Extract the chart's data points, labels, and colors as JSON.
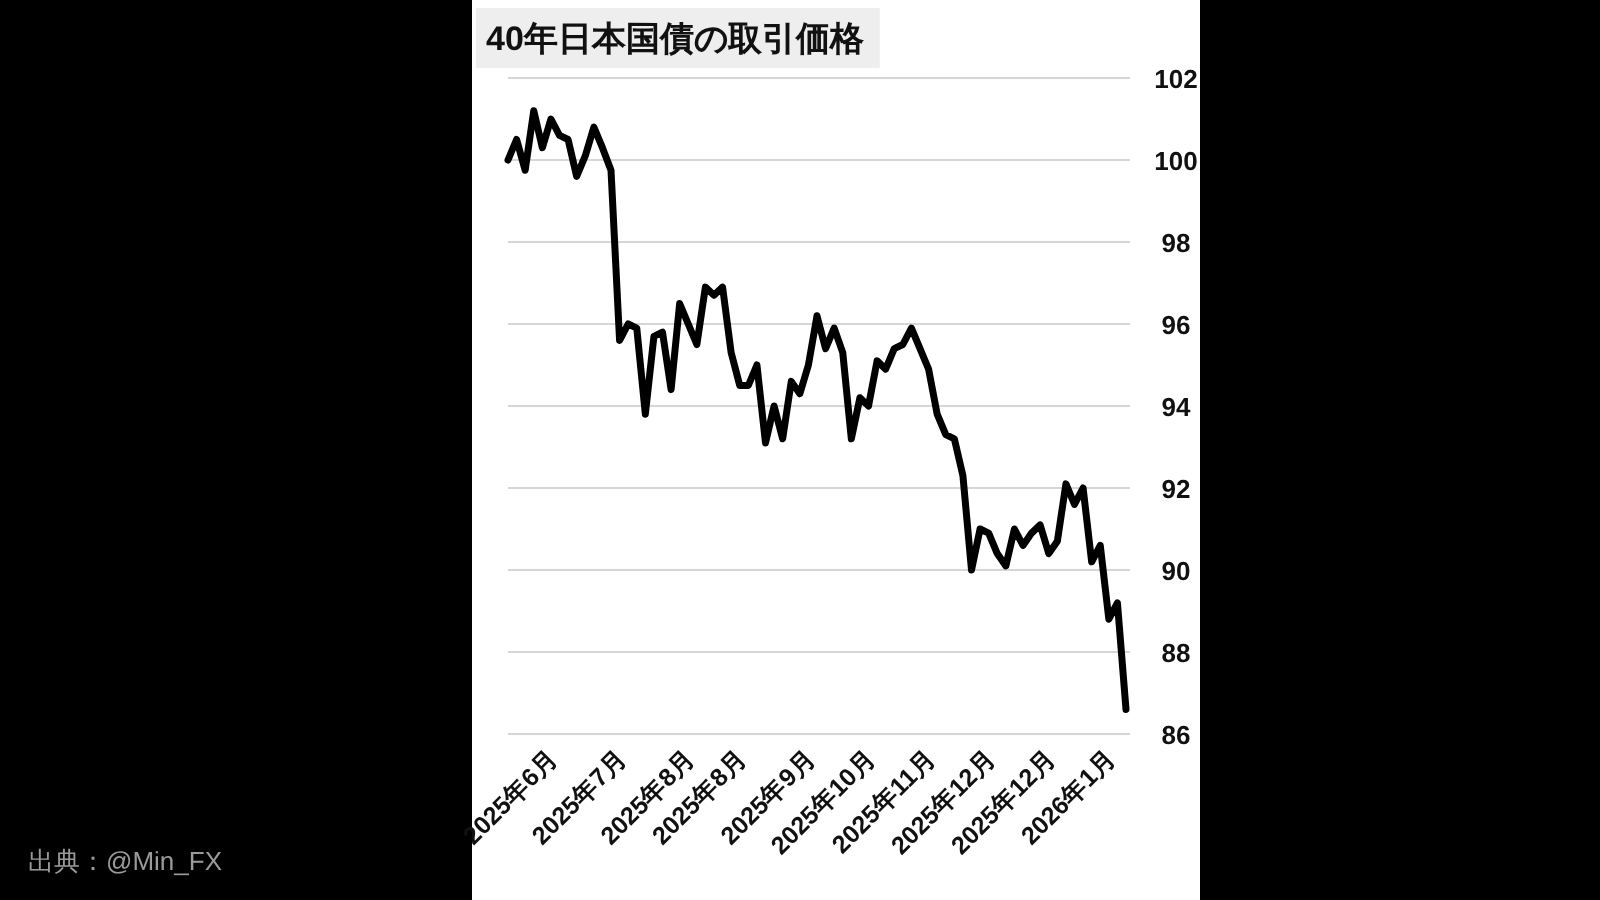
{
  "chart_data": {
    "type": "line",
    "title": "40年日本国債の取引価格",
    "annotations": [
      "出典：@Min_FX"
    ],
    "categories": [
      null,
      null,
      null,
      null,
      null,
      null,
      "2025年6月",
      null,
      null,
      null,
      null,
      null,
      null,
      null,
      "2025年7月",
      null,
      null,
      null,
      null,
      null,
      null,
      null,
      "2025年8月",
      null,
      null,
      null,
      null,
      null,
      "2025年8月",
      null,
      null,
      null,
      null,
      null,
      null,
      null,
      "2025年9月",
      null,
      null,
      null,
      null,
      null,
      null,
      "2025年10月",
      null,
      null,
      null,
      null,
      null,
      null,
      "2025年11月",
      null,
      null,
      null,
      null,
      null,
      null,
      "2025年12月",
      null,
      null,
      null,
      null,
      null,
      null,
      "2025年12月",
      null,
      null,
      null,
      null,
      null,
      null,
      "2026年1月",
      null
    ],
    "series": [
      {
        "color": "#000000",
        "values": [
          100.0,
          100.5,
          99.75,
          101.2,
          100.3,
          101.0,
          100.6,
          100.5,
          99.6,
          100.1,
          100.8,
          100.3,
          99.75,
          95.6,
          96.0,
          95.9,
          93.8,
          95.7,
          95.8,
          94.4,
          96.5,
          96.0,
          95.5,
          96.9,
          96.7,
          96.9,
          95.3,
          94.5,
          94.5,
          95.0,
          93.1,
          94.0,
          93.2,
          94.6,
          94.3,
          95.0,
          96.2,
          95.4,
          95.9,
          95.3,
          93.2,
          94.2,
          94.0,
          95.1,
          94.9,
          95.4,
          95.5,
          95.9,
          95.4,
          94.9,
          93.8,
          93.3,
          93.2,
          92.3,
          90.0,
          91.0,
          90.9,
          90.4,
          90.1,
          91.0,
          90.6,
          90.9,
          91.1,
          90.4,
          90.7,
          92.1,
          91.6,
          92.0,
          90.2,
          90.6,
          88.8,
          89.2,
          86.6
        ]
      }
    ],
    "ylim": [
      86,
      102
    ],
    "yticks": [
      86,
      88,
      90,
      92,
      94,
      96,
      98,
      100,
      102
    ],
    "grid": "y"
  }
}
